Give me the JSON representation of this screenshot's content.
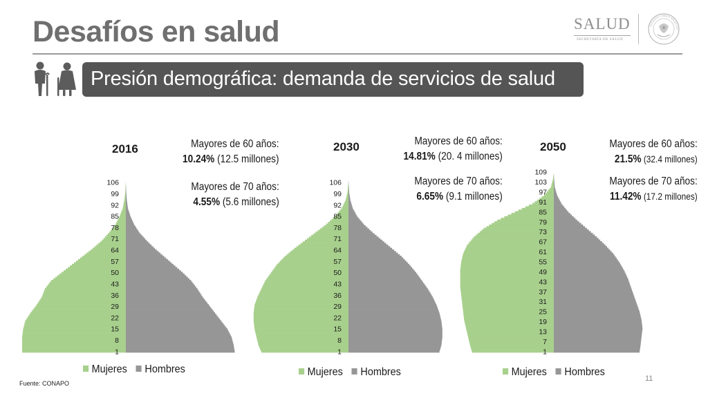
{
  "header": {
    "title": "Desafíos en salud",
    "logo_text": "SALUD",
    "logo_subtext": "SECRETARÍA DE SALUD",
    "seal_text": "ESTADOS UNIDOS MEXICANOS"
  },
  "banner": {
    "text": "Presión demográfica: demanda de servicios de salud"
  },
  "legend": {
    "mujeres": "Mujeres",
    "hombres": "Hombres"
  },
  "colors": {
    "mujeres": "#a8d08d",
    "hombres": "#969696",
    "banner": "#555555",
    "title": "#6f6f6f"
  },
  "footer": {
    "source": "Fuente: CONAPO",
    "page_number": "11"
  },
  "stats": [
    {
      "year": "2016",
      "l60_label": "Mayores de 60 años:",
      "l60_pct": "10.24%",
      "l60_detail": " (12.5 millones)",
      "l70_label": "Mayores de 70 años:",
      "l70_pct": "4.55%",
      "l70_detail": " (5.6 millones)"
    },
    {
      "year": "2030",
      "l60_label": "Mayores de 60 años:",
      "l60_pct": "14.81%",
      "l60_detail": " (20. 4 millones)",
      "l70_label": "Mayores de 70 años:",
      "l70_pct": "6.65%",
      "l70_detail": " (9.1 millones)"
    },
    {
      "year": "2050",
      "l60_label": "Mayores de 60 años:",
      "l60_pct": "21.5%",
      "l60_detail": " (32.4 millones)",
      "l70_label": "Mayores de 70 años:",
      "l70_pct": "11.42%",
      "l70_detail": " (17.2 millones)"
    }
  ],
  "chart_data": [
    {
      "type": "bar",
      "subtype": "population-pyramid",
      "title": "2016",
      "series": [
        {
          "name": "Mujeres",
          "color": "#a8d08d"
        },
        {
          "name": "Hombres",
          "color": "#969696"
        }
      ],
      "age_min": 1,
      "age_max": 109,
      "y_tick_labels": [
        "106",
        "99",
        "92",
        "85",
        "78",
        "71",
        "64",
        "57",
        "50",
        "43",
        "36",
        "29",
        "22",
        "15",
        "8",
        "1"
      ],
      "profile_ages": [
        1,
        5,
        10,
        15,
        20,
        25,
        30,
        35,
        40,
        45,
        50,
        55,
        60,
        65,
        70,
        75,
        80,
        85,
        90,
        95,
        100,
        105,
        109
      ],
      "mujeres": [
        1.0,
        1.0,
        1.0,
        0.99,
        0.97,
        0.92,
        0.86,
        0.81,
        0.78,
        0.72,
        0.62,
        0.52,
        0.42,
        0.32,
        0.23,
        0.16,
        0.1,
        0.06,
        0.03,
        0.015,
        0.005,
        0.002,
        0.0
      ],
      "hombres": [
        1.05,
        1.04,
        1.02,
        0.98,
        0.92,
        0.86,
        0.8,
        0.74,
        0.69,
        0.63,
        0.55,
        0.46,
        0.37,
        0.28,
        0.2,
        0.13,
        0.08,
        0.045,
        0.02,
        0.01,
        0.004,
        0.001,
        0.0
      ],
      "legend_position": "bottom"
    },
    {
      "type": "bar",
      "subtype": "population-pyramid",
      "title": "2030",
      "series": [
        {
          "name": "Mujeres",
          "color": "#a8d08d"
        },
        {
          "name": "Hombres",
          "color": "#969696"
        }
      ],
      "age_min": 1,
      "age_max": 109,
      "y_tick_labels": [
        "106",
        "99",
        "92",
        "85",
        "78",
        "71",
        "64",
        "57",
        "50",
        "43",
        "36",
        "29",
        "22",
        "15",
        "8",
        "1"
      ],
      "profile_ages": [
        1,
        5,
        10,
        15,
        20,
        25,
        30,
        35,
        40,
        45,
        50,
        55,
        60,
        65,
        70,
        75,
        80,
        85,
        90,
        95,
        100,
        105,
        109
      ],
      "mujeres": [
        0.9,
        0.93,
        0.95,
        0.97,
        0.98,
        0.98,
        0.97,
        0.94,
        0.9,
        0.86,
        0.8,
        0.74,
        0.66,
        0.56,
        0.45,
        0.34,
        0.23,
        0.14,
        0.07,
        0.03,
        0.01,
        0.003,
        0.0
      ],
      "hombres": [
        0.94,
        0.96,
        0.97,
        0.97,
        0.96,
        0.94,
        0.91,
        0.87,
        0.82,
        0.76,
        0.7,
        0.63,
        0.55,
        0.45,
        0.35,
        0.25,
        0.16,
        0.09,
        0.045,
        0.02,
        0.007,
        0.002,
        0.0
      ],
      "legend_position": "bottom"
    },
    {
      "type": "bar",
      "subtype": "population-pyramid",
      "title": "2050",
      "series": [
        {
          "name": "Mujeres",
          "color": "#a8d08d"
        },
        {
          "name": "Hombres",
          "color": "#969696"
        }
      ],
      "age_min": 1,
      "age_max": 109,
      "y_tick_labels": [
        "109",
        "103",
        "97",
        "91",
        "85",
        "79",
        "73",
        "67",
        "61",
        "55",
        "49",
        "43",
        "37",
        "31",
        "25",
        "19",
        "13",
        "7",
        "1"
      ],
      "profile_ages": [
        1,
        5,
        10,
        15,
        20,
        25,
        30,
        35,
        40,
        45,
        50,
        55,
        60,
        65,
        70,
        75,
        80,
        85,
        90,
        95,
        100,
        105,
        109
      ],
      "mujeres": [
        0.84,
        0.86,
        0.88,
        0.9,
        0.92,
        0.93,
        0.94,
        0.95,
        0.96,
        0.96,
        0.96,
        0.95,
        0.93,
        0.89,
        0.82,
        0.72,
        0.58,
        0.4,
        0.22,
        0.1,
        0.03,
        0.008,
        0.0
      ],
      "hombres": [
        0.88,
        0.89,
        0.9,
        0.91,
        0.9,
        0.88,
        0.85,
        0.82,
        0.79,
        0.76,
        0.72,
        0.67,
        0.61,
        0.53,
        0.44,
        0.34,
        0.24,
        0.15,
        0.08,
        0.035,
        0.01,
        0.003,
        0.0
      ],
      "legend_position": "bottom"
    }
  ]
}
